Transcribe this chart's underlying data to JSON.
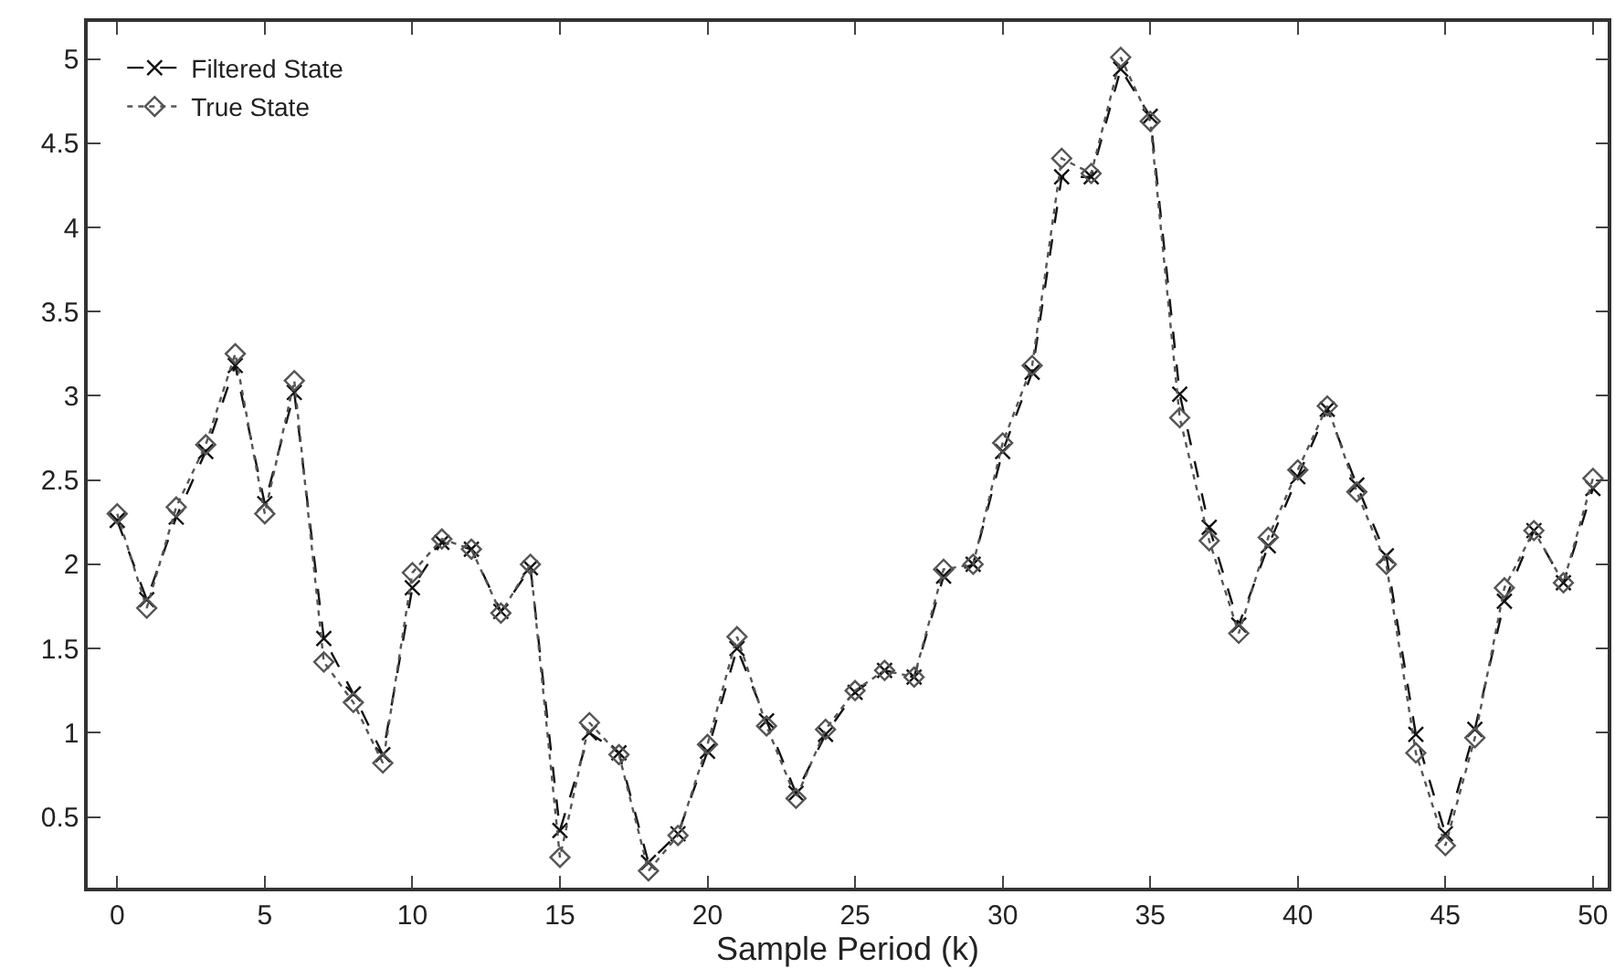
{
  "chart_data": {
    "type": "line",
    "xlabel": "Sample Period (k)",
    "x": [
      0,
      1,
      2,
      3,
      4,
      5,
      6,
      7,
      8,
      9,
      10,
      11,
      12,
      13,
      14,
      15,
      16,
      17,
      18,
      19,
      20,
      21,
      22,
      23,
      24,
      25,
      26,
      27,
      28,
      29,
      30,
      31,
      32,
      33,
      34,
      35,
      36,
      37,
      38,
      39,
      40,
      41,
      42,
      43,
      44,
      45,
      46,
      47,
      48,
      49,
      50
    ],
    "series": [
      {
        "name": "Filtered State",
        "color": "#111111",
        "marker": "cross",
        "line_style": "dashed",
        "values": [
          2.26,
          1.79,
          2.28,
          2.67,
          3.18,
          2.36,
          3.02,
          1.56,
          1.23,
          0.87,
          1.86,
          2.13,
          2.09,
          1.72,
          1.98,
          0.42,
          1.0,
          0.88,
          0.23,
          0.4,
          0.89,
          1.5,
          1.07,
          0.64,
          0.99,
          1.24,
          1.37,
          1.33,
          1.93,
          2.0,
          2.67,
          3.14,
          4.3,
          4.3,
          4.94,
          4.66,
          3.01,
          2.22,
          1.64,
          2.11,
          2.52,
          2.92,
          2.47,
          2.05,
          0.99,
          0.4,
          1.02,
          1.78,
          2.2,
          1.89,
          2.45
        ]
      },
      {
        "name": "True State",
        "color": "#555555",
        "marker": "diamond",
        "line_style": "dotted",
        "values": [
          2.3,
          1.74,
          2.34,
          2.71,
          3.25,
          2.3,
          3.09,
          1.42,
          1.18,
          0.82,
          1.95,
          2.15,
          2.09,
          1.71,
          2.0,
          0.26,
          1.06,
          0.87,
          0.18,
          0.39,
          0.93,
          1.57,
          1.04,
          0.61,
          1.02,
          1.25,
          1.37,
          1.33,
          1.97,
          2.0,
          2.72,
          3.18,
          4.41,
          4.32,
          5.01,
          4.63,
          2.87,
          2.14,
          1.59,
          2.16,
          2.56,
          2.94,
          2.43,
          2.0,
          0.88,
          0.33,
          0.97,
          1.86,
          2.2,
          1.89,
          2.51
        ]
      }
    ],
    "xlim": [
      -1,
      50.5
    ],
    "xticks": [
      0,
      5,
      10,
      15,
      20,
      25,
      30,
      35,
      40,
      45,
      50
    ],
    "ylim": [
      0.08,
      5.22
    ],
    "yticks": [
      0.5,
      1,
      1.5,
      2,
      2.5,
      3,
      3.5,
      4,
      4.5,
      5
    ],
    "grid": false,
    "legend": "top left"
  }
}
